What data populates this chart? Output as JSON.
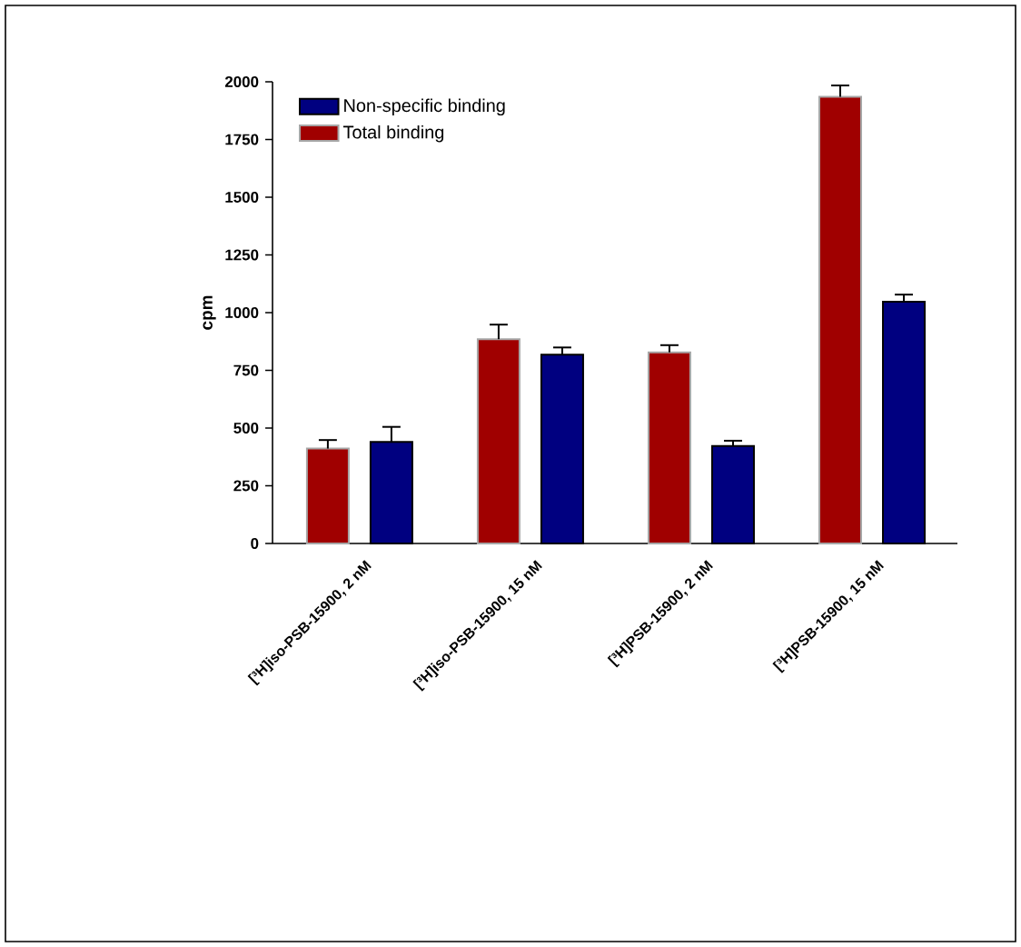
{
  "chart_data": {
    "type": "bar",
    "ylabel": "cpm",
    "categories": [
      "[³H]iso-PSB-15900, 2 nM",
      "[³H]iso-PSB-15900, 15 nM",
      "[³H]PSB-15900, 2 nM",
      "[³H]PSB-15900, 15 nM"
    ],
    "series": [
      {
        "name": "Non-specific binding",
        "color": "#000080",
        "values": [
          440,
          818,
          422,
          1047
        ],
        "errors": [
          65,
          31,
          23,
          31
        ]
      },
      {
        "name": "Total binding",
        "color": "#a00000",
        "values": [
          411,
          885,
          828,
          1935
        ],
        "errors": [
          37,
          63,
          31,
          49
        ]
      }
    ],
    "ylim": [
      0,
      2000
    ],
    "yticks": [
      0,
      250,
      500,
      750,
      1000,
      1250,
      1500,
      1750,
      2000
    ],
    "legend": "top left",
    "grid": false
  }
}
